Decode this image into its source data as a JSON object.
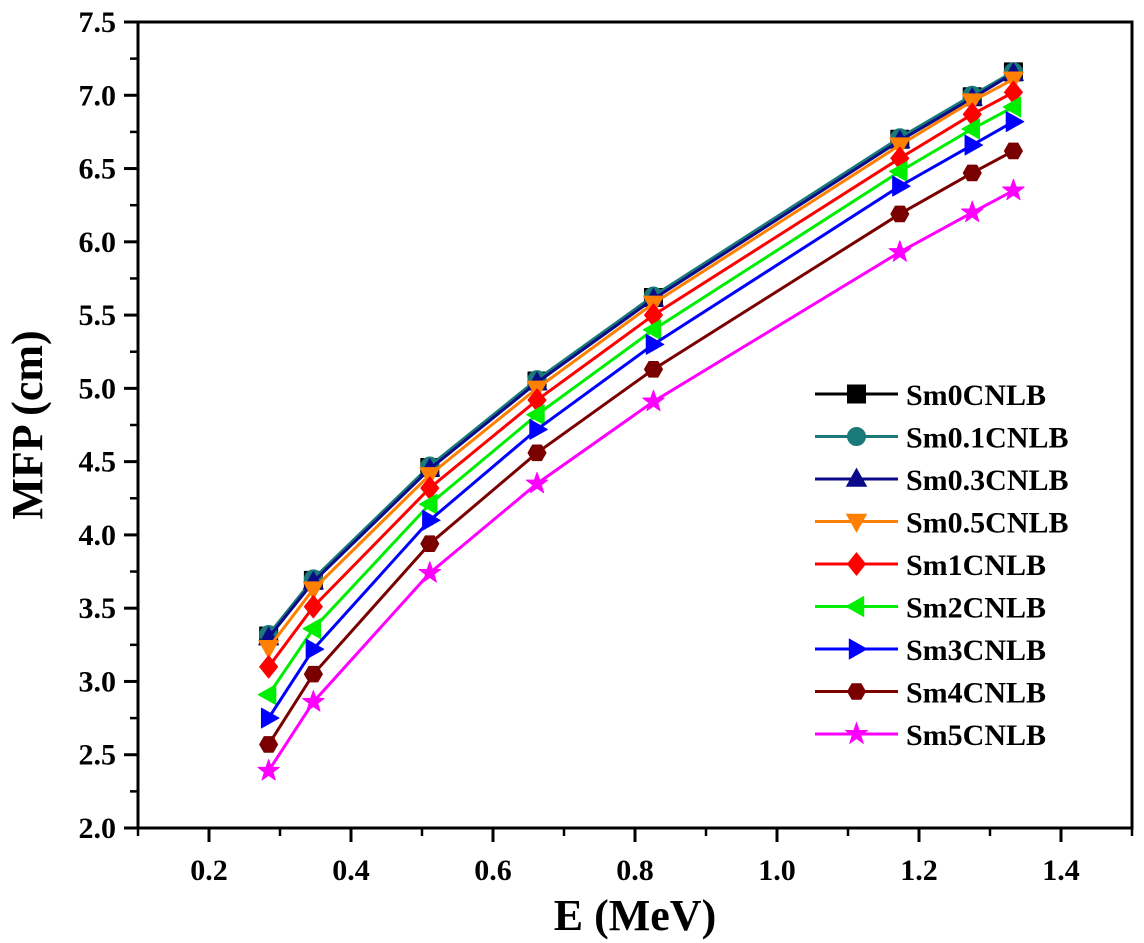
{
  "chart_data": {
    "type": "line",
    "title": "",
    "xlabel": "E (MeV)",
    "ylabel": "MFP (cm)",
    "xlim": [
      0.1,
      1.5
    ],
    "ylim": [
      2.0,
      7.5
    ],
    "xticks": [
      0.2,
      0.4,
      0.6,
      0.8,
      1.0,
      1.2,
      1.4
    ],
    "xtick_labels": [
      "0.2",
      "0.4",
      "0.6",
      "0.8",
      "1.0",
      "1.2",
      "1.4"
    ],
    "yticks": [
      2.0,
      2.5,
      3.0,
      3.5,
      4.0,
      4.5,
      5.0,
      5.5,
      6.0,
      6.5,
      7.0,
      7.5
    ],
    "ytick_labels": [
      "2.0",
      "2.5",
      "3.0",
      "3.5",
      "4.0",
      "4.5",
      "5.0",
      "5.5",
      "6.0",
      "6.5",
      "7.0",
      "7.5"
    ],
    "grid": false,
    "legend_position": "right",
    "x": [
      0.284,
      0.347,
      0.511,
      0.662,
      0.826,
      1.173,
      1.275,
      1.333
    ],
    "series": [
      {
        "name": "Sm0CNLB",
        "color": "#000000",
        "marker": "square",
        "values": [
          3.31,
          3.69,
          4.46,
          5.05,
          5.62,
          6.7,
          6.99,
          7.16
        ]
      },
      {
        "name": "Sm0.1CNLB",
        "color": "#1a7a7a",
        "marker": "circle",
        "values": [
          3.32,
          3.7,
          4.47,
          5.06,
          5.63,
          6.71,
          7.0,
          7.16
        ]
      },
      {
        "name": "Sm0.3CNLB",
        "color": "#0a0a8a",
        "marker": "triangle-up",
        "values": [
          3.3,
          3.68,
          4.45,
          5.04,
          5.61,
          6.69,
          6.98,
          7.15
        ]
      },
      {
        "name": "Sm0.5CNLB",
        "color": "#ff8000",
        "marker": "triangle-down",
        "values": [
          3.23,
          3.63,
          4.41,
          5.0,
          5.58,
          6.66,
          6.96,
          7.11
        ]
      },
      {
        "name": "Sm1CNLB",
        "color": "#ff0000",
        "marker": "diamond",
        "values": [
          3.1,
          3.51,
          4.32,
          4.92,
          5.5,
          6.57,
          6.87,
          7.02
        ]
      },
      {
        "name": "Sm2CNLB",
        "color": "#00ee00",
        "marker": "triangle-left",
        "values": [
          2.91,
          3.36,
          4.21,
          4.82,
          5.4,
          6.48,
          6.77,
          6.92
        ]
      },
      {
        "name": "Sm3CNLB",
        "color": "#0000ff",
        "marker": "triangle-right",
        "values": [
          2.75,
          3.22,
          4.1,
          4.72,
          5.3,
          6.38,
          6.66,
          6.82
        ]
      },
      {
        "name": "Sm4CNLB",
        "color": "#7a0000",
        "marker": "hexagon",
        "values": [
          2.57,
          3.05,
          3.94,
          4.56,
          5.13,
          6.19,
          6.47,
          6.62
        ]
      },
      {
        "name": "Sm5CNLB",
        "color": "#ff00ff",
        "marker": "star",
        "values": [
          2.39,
          2.86,
          3.74,
          4.35,
          4.91,
          5.93,
          6.2,
          6.35
        ]
      }
    ]
  }
}
